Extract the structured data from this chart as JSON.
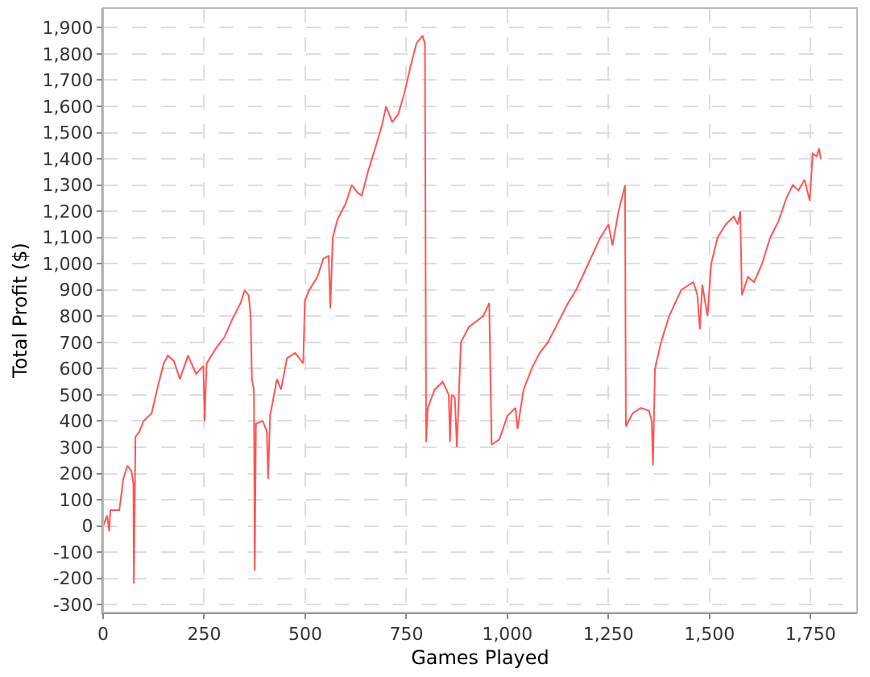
{
  "chart_data": {
    "type": "line",
    "xlabel": "Games Played",
    "ylabel": "Total Profit ($)",
    "xlim": [
      0,
      1865
    ],
    "ylim": [
      -330,
      1975
    ],
    "xticks": [
      0,
      250,
      500,
      750,
      {
        "value": 1000,
        "label": "1,000"
      },
      {
        "value": 1250,
        "label": "1,250"
      },
      {
        "value": 1500,
        "label": "1,500"
      },
      {
        "value": 1750,
        "label": "1,750"
      }
    ],
    "yticks": [
      -300,
      -200,
      -100,
      0,
      100,
      200,
      300,
      400,
      500,
      600,
      700,
      800,
      900,
      {
        "value": 1000,
        "label": "1,000"
      },
      {
        "value": 1100,
        "label": "1,100"
      },
      {
        "value": 1200,
        "label": "1,200"
      },
      {
        "value": 1300,
        "label": "1,300"
      },
      {
        "value": 1400,
        "label": "1,400"
      },
      {
        "value": 1500,
        "label": "1,500"
      },
      {
        "value": 1600,
        "label": "1,600"
      },
      {
        "value": 1700,
        "label": "1,700"
      },
      {
        "value": 1800,
        "label": "1,800"
      },
      {
        "value": 1900,
        "label": "1,900"
      }
    ],
    "grid": true,
    "legend": false,
    "marker": "none",
    "line_style": "solid",
    "x": [
      0,
      10,
      15,
      18,
      40,
      50,
      60,
      70,
      75,
      76,
      80,
      90,
      100,
      120,
      135,
      150,
      160,
      175,
      190,
      210,
      230,
      248,
      251,
      256,
      280,
      300,
      320,
      340,
      350,
      360,
      365,
      368,
      373,
      375,
      378,
      395,
      405,
      408,
      413,
      430,
      440,
      455,
      475,
      495,
      499,
      510,
      530,
      545,
      558,
      562,
      568,
      580,
      600,
      615,
      630,
      640,
      655,
      675,
      690,
      700,
      715,
      730,
      745,
      760,
      775,
      790,
      796,
      799,
      803,
      820,
      840,
      855,
      858,
      862,
      870,
      875,
      885,
      905,
      940,
      955,
      961,
      980,
      1000,
      1020,
      1025,
      1040,
      1060,
      1080,
      1100,
      1120,
      1150,
      1170,
      1200,
      1230,
      1250,
      1260,
      1275,
      1291,
      1293,
      1310,
      1330,
      1350,
      1357,
      1360,
      1365,
      1380,
      1400,
      1430,
      1450,
      1460,
      1470,
      1476,
      1482,
      1495,
      1504,
      1520,
      1540,
      1560,
      1570,
      1576,
      1580,
      1595,
      1610,
      1630,
      1650,
      1670,
      1690,
      1706,
      1720,
      1735,
      1748,
      1755,
      1765,
      1771,
      1775
    ],
    "series": [
      {
        "color": "#ff5555",
        "values": [
          0,
          40,
          -20,
          60,
          60,
          180,
          230,
          210,
          160,
          -220,
          340,
          360,
          400,
          430,
          530,
          620,
          650,
          630,
          560,
          650,
          580,
          610,
          400,
          620,
          680,
          720,
          790,
          850,
          900,
          880,
          800,
          560,
          520,
          -170,
          390,
          400,
          360,
          180,
          420,
          560,
          520,
          640,
          660,
          620,
          860,
          900,
          950,
          1020,
          1030,
          830,
          1100,
          1170,
          1230,
          1300,
          1270,
          1260,
          1350,
          1450,
          1530,
          1600,
          1540,
          1570,
          1650,
          1750,
          1840,
          1870,
          1840,
          320,
          450,
          520,
          550,
          500,
          320,
          500,
          490,
          300,
          700,
          760,
          800,
          850,
          310,
          330,
          420,
          450,
          370,
          520,
          600,
          660,
          700,
          760,
          850,
          900,
          1000,
          1100,
          1150,
          1070,
          1200,
          1300,
          380,
          430,
          450,
          440,
          400,
          230,
          600,
          700,
          800,
          900,
          920,
          930,
          880,
          750,
          920,
          800,
          1000,
          1100,
          1150,
          1180,
          1150,
          1200,
          880,
          950,
          930,
          1000,
          1100,
          1160,
          1250,
          1300,
          1280,
          1320,
          1240,
          1420,
          1410,
          1440,
          1400
        ]
      }
    ]
  }
}
